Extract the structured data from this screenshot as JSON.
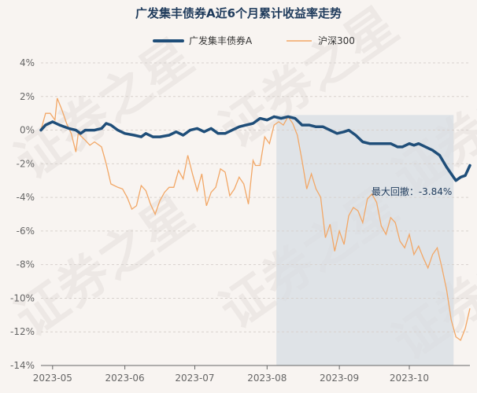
{
  "chart_data": {
    "type": "line",
    "title": "广发集丰债券A近6个月累计收益率走势",
    "xlabel": "",
    "ylabel": "",
    "y_ticks": [
      "4%",
      "2%",
      "0%",
      "-2%",
      "-4%",
      "-6%",
      "-8%",
      "-10%",
      "-12%",
      "-14%"
    ],
    "ylim": [
      -14,
      4
    ],
    "x_ticks": [
      {
        "label": "2023-05",
        "date": "2023-05-01"
      },
      {
        "label": "2023-06",
        "date": "2023-06-01"
      },
      {
        "label": "2023-07",
        "date": "2023-07-01"
      },
      {
        "label": "2023-08",
        "date": "2023-08-01"
      },
      {
        "label": "2023-09",
        "date": "2023-09-01"
      },
      {
        "label": "2023-10",
        "date": "2023-10-01"
      }
    ],
    "xlim": [
      "2023-04-26",
      "2023-10-27"
    ],
    "legend_position": "top-center",
    "grid": "horizontal",
    "drawdown_region": {
      "start": "2023-08-05",
      "end": "2023-10-20"
    },
    "annotation": {
      "text": "最大回撤：-3.84%",
      "date": "2023-10-20",
      "value": -3.3
    },
    "watermark": "证券之星",
    "series": [
      {
        "name": "广发集丰债券A",
        "color": "#1f4e79",
        "points": [
          [
            "2023-04-26",
            0.0
          ],
          [
            "2023-04-28",
            0.3
          ],
          [
            "2023-05-01",
            0.5
          ],
          [
            "2023-05-04",
            0.3
          ],
          [
            "2023-05-08",
            0.1
          ],
          [
            "2023-05-11",
            0.0
          ],
          [
            "2023-05-13",
            -0.2
          ],
          [
            "2023-05-15",
            0.0
          ],
          [
            "2023-05-19",
            0.0
          ],
          [
            "2023-05-22",
            0.1
          ],
          [
            "2023-05-24",
            0.4
          ],
          [
            "2023-05-26",
            0.3
          ],
          [
            "2023-05-29",
            0.0
          ],
          [
            "2023-06-01",
            -0.2
          ],
          [
            "2023-06-05",
            -0.3
          ],
          [
            "2023-06-08",
            -0.4
          ],
          [
            "2023-06-10",
            -0.2
          ],
          [
            "2023-06-13",
            -0.4
          ],
          [
            "2023-06-16",
            -0.4
          ],
          [
            "2023-06-20",
            -0.3
          ],
          [
            "2023-06-23",
            -0.1
          ],
          [
            "2023-06-26",
            -0.3
          ],
          [
            "2023-06-29",
            0.0
          ],
          [
            "2023-07-02",
            0.1
          ],
          [
            "2023-07-05",
            -0.1
          ],
          [
            "2023-07-08",
            0.1
          ],
          [
            "2023-07-11",
            -0.2
          ],
          [
            "2023-07-14",
            -0.2
          ],
          [
            "2023-07-17",
            0.0
          ],
          [
            "2023-07-20",
            0.2
          ],
          [
            "2023-07-23",
            0.3
          ],
          [
            "2023-07-26",
            0.4
          ],
          [
            "2023-07-29",
            0.7
          ],
          [
            "2023-08-01",
            0.6
          ],
          [
            "2023-08-04",
            0.8
          ],
          [
            "2023-08-07",
            0.7
          ],
          [
            "2023-08-10",
            0.8
          ],
          [
            "2023-08-13",
            0.7
          ],
          [
            "2023-08-16",
            0.3
          ],
          [
            "2023-08-19",
            0.3
          ],
          [
            "2023-08-22",
            0.2
          ],
          [
            "2023-08-25",
            0.2
          ],
          [
            "2023-08-28",
            0.0
          ],
          [
            "2023-08-31",
            -0.2
          ],
          [
            "2023-09-03",
            -0.1
          ],
          [
            "2023-09-05",
            0.0
          ],
          [
            "2023-09-08",
            -0.3
          ],
          [
            "2023-09-11",
            -0.7
          ],
          [
            "2023-09-14",
            -0.8
          ],
          [
            "2023-09-17",
            -0.8
          ],
          [
            "2023-09-20",
            -0.8
          ],
          [
            "2023-09-23",
            -0.8
          ],
          [
            "2023-09-26",
            -1.0
          ],
          [
            "2023-09-28",
            -1.0
          ],
          [
            "2023-10-01",
            -0.8
          ],
          [
            "2023-10-03",
            -0.9
          ],
          [
            "2023-10-05",
            -0.8
          ],
          [
            "2023-10-08",
            -1.0
          ],
          [
            "2023-10-11",
            -1.2
          ],
          [
            "2023-10-14",
            -1.5
          ],
          [
            "2023-10-17",
            -2.2
          ],
          [
            "2023-10-19",
            -2.6
          ],
          [
            "2023-10-21",
            -3.0
          ],
          [
            "2023-10-23",
            -2.8
          ],
          [
            "2023-10-25",
            -2.7
          ],
          [
            "2023-10-27",
            -2.1
          ]
        ]
      },
      {
        "name": "沪深300",
        "color": "#f2a766",
        "points": [
          [
            "2023-04-26",
            0.0
          ],
          [
            "2023-04-28",
            1.0
          ],
          [
            "2023-04-30",
            1.0
          ],
          [
            "2023-05-02",
            0.6
          ],
          [
            "2023-05-03",
            1.9
          ],
          [
            "2023-05-05",
            1.2
          ],
          [
            "2023-05-07",
            0.4
          ],
          [
            "2023-05-09",
            -0.2
          ],
          [
            "2023-05-11",
            -1.3
          ],
          [
            "2023-05-12",
            -0.2
          ],
          [
            "2023-05-15",
            -0.6
          ],
          [
            "2023-05-17",
            -0.9
          ],
          [
            "2023-05-19",
            -0.7
          ],
          [
            "2023-05-22",
            -1.0
          ],
          [
            "2023-05-24",
            -2.0
          ],
          [
            "2023-05-26",
            -3.2
          ],
          [
            "2023-05-29",
            -3.4
          ],
          [
            "2023-05-31",
            -3.5
          ],
          [
            "2023-06-02",
            -4.0
          ],
          [
            "2023-06-04",
            -4.7
          ],
          [
            "2023-06-06",
            -4.5
          ],
          [
            "2023-06-08",
            -3.3
          ],
          [
            "2023-06-10",
            -3.6
          ],
          [
            "2023-06-12",
            -4.4
          ],
          [
            "2023-06-14",
            -5.0
          ],
          [
            "2023-06-16",
            -4.2
          ],
          [
            "2023-06-18",
            -3.7
          ],
          [
            "2023-06-20",
            -3.4
          ],
          [
            "2023-06-22",
            -3.4
          ],
          [
            "2023-06-24",
            -2.4
          ],
          [
            "2023-06-26",
            -2.9
          ],
          [
            "2023-06-28",
            -1.5
          ],
          [
            "2023-06-30",
            -2.6
          ],
          [
            "2023-07-02",
            -3.6
          ],
          [
            "2023-07-04",
            -2.6
          ],
          [
            "2023-07-06",
            -4.5
          ],
          [
            "2023-07-08",
            -3.7
          ],
          [
            "2023-07-10",
            -3.4
          ],
          [
            "2023-07-12",
            -2.3
          ],
          [
            "2023-07-14",
            -2.5
          ],
          [
            "2023-07-16",
            -3.9
          ],
          [
            "2023-07-18",
            -3.5
          ],
          [
            "2023-07-20",
            -2.8
          ],
          [
            "2023-07-22",
            -3.2
          ],
          [
            "2023-07-24",
            -4.4
          ],
          [
            "2023-07-26",
            -1.8
          ],
          [
            "2023-07-27",
            -2.1
          ],
          [
            "2023-07-29",
            -2.1
          ],
          [
            "2023-07-31",
            -0.4
          ],
          [
            "2023-08-02",
            -0.8
          ],
          [
            "2023-08-04",
            0.3
          ],
          [
            "2023-08-06",
            0.5
          ],
          [
            "2023-08-08",
            0.3
          ],
          [
            "2023-08-10",
            0.8
          ],
          [
            "2023-08-12",
            0.4
          ],
          [
            "2023-08-14",
            -0.3
          ],
          [
            "2023-08-16",
            -1.8
          ],
          [
            "2023-08-18",
            -3.5
          ],
          [
            "2023-08-20",
            -2.6
          ],
          [
            "2023-08-22",
            -3.5
          ],
          [
            "2023-08-24",
            -4.0
          ],
          [
            "2023-08-26",
            -6.4
          ],
          [
            "2023-08-28",
            -5.6
          ],
          [
            "2023-08-30",
            -7.2
          ],
          [
            "2023-09-01",
            -6.0
          ],
          [
            "2023-09-03",
            -6.8
          ],
          [
            "2023-09-05",
            -5.1
          ],
          [
            "2023-09-07",
            -4.6
          ],
          [
            "2023-09-09",
            -4.8
          ],
          [
            "2023-09-11",
            -5.5
          ],
          [
            "2023-09-13",
            -4.1
          ],
          [
            "2023-09-15",
            -3.8
          ],
          [
            "2023-09-17",
            -4.3
          ],
          [
            "2023-09-19",
            -5.7
          ],
          [
            "2023-09-21",
            -6.2
          ],
          [
            "2023-09-23",
            -5.2
          ],
          [
            "2023-09-25",
            -5.5
          ],
          [
            "2023-09-27",
            -6.6
          ],
          [
            "2023-09-29",
            -7.0
          ],
          [
            "2023-10-01",
            -6.2
          ],
          [
            "2023-10-03",
            -7.4
          ],
          [
            "2023-10-05",
            -6.9
          ],
          [
            "2023-10-07",
            -7.6
          ],
          [
            "2023-10-09",
            -8.2
          ],
          [
            "2023-10-11",
            -7.4
          ],
          [
            "2023-10-13",
            -7.0
          ],
          [
            "2023-10-15",
            -8.2
          ],
          [
            "2023-10-17",
            -9.5
          ],
          [
            "2023-10-19",
            -11.3
          ],
          [
            "2023-10-21",
            -12.3
          ],
          [
            "2023-10-23",
            -12.5
          ],
          [
            "2023-10-25",
            -11.8
          ],
          [
            "2023-10-27",
            -10.6
          ]
        ]
      }
    ]
  }
}
